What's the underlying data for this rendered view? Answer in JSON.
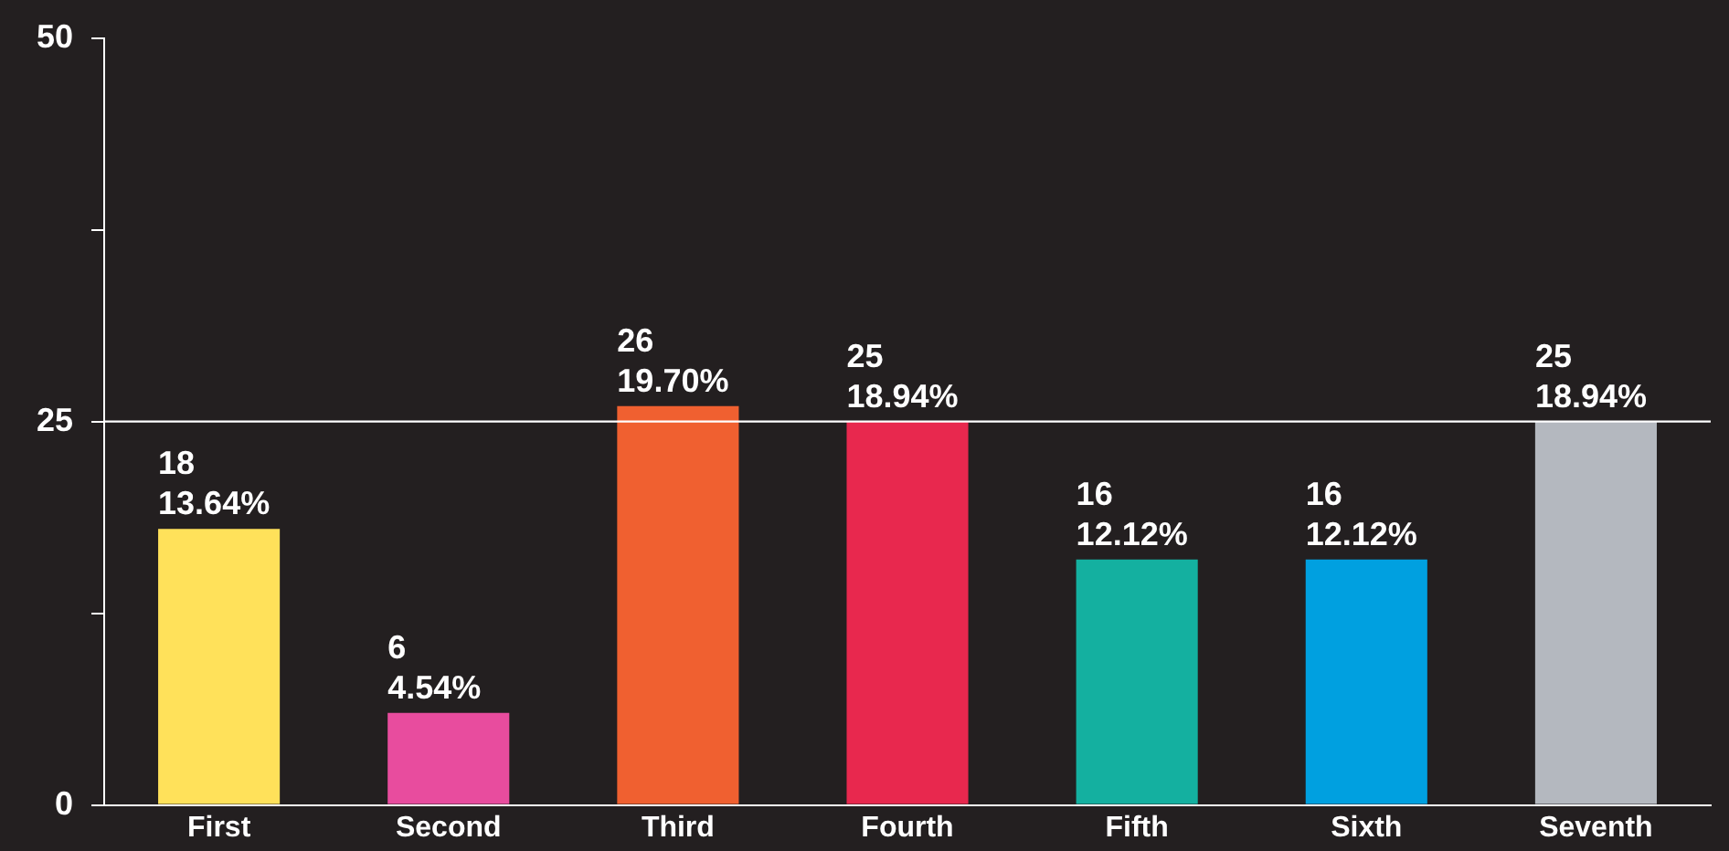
{
  "chart_data": {
    "type": "bar",
    "categories": [
      "First",
      "Second",
      "Third",
      "Fourth",
      "Fifth",
      "Sixth",
      "Seventh"
    ],
    "values": [
      18,
      6,
      26,
      25,
      16,
      16,
      25
    ],
    "colors": [
      "#ffe15a",
      "#e84c9e",
      "#f06030",
      "#e8284e",
      "#14b0a0",
      "#00a0e0",
      "#b4b8bf"
    ],
    "value_labels": [
      "18\n13.64%",
      "6\n4.54%",
      "26\n19.70%",
      "25\n18.94%",
      "16\n12.12%",
      "16\n12.12%",
      "25\n18.94%"
    ],
    "ylim": [
      0,
      50
    ],
    "yticks": [
      0,
      {
        "value": 12.5,
        "label": null
      },
      25,
      {
        "value": 37.5,
        "label": null
      },
      50
    ],
    "ref_lines": [
      {
        "axis": "y",
        "value": 25,
        "color": "#ffffff"
      }
    ],
    "grid": false,
    "legend": false
  }
}
